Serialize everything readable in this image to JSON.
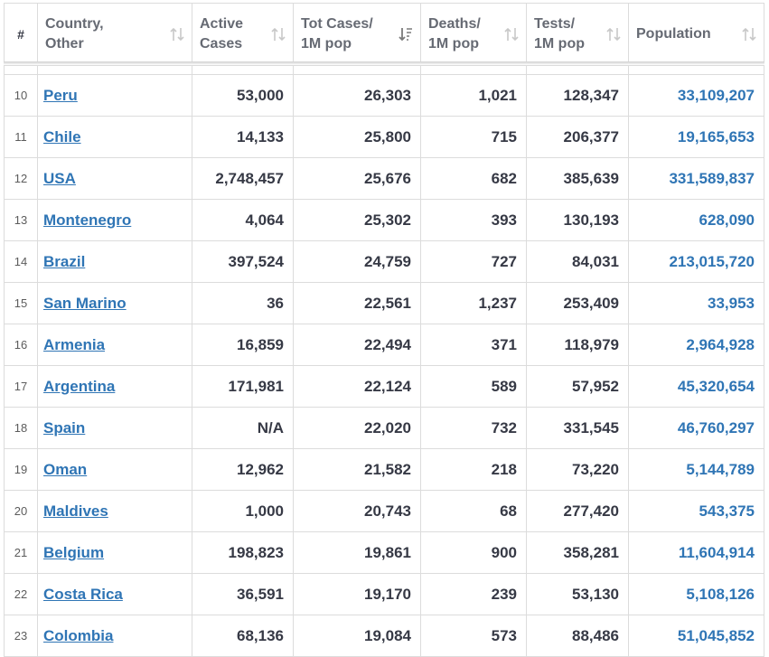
{
  "columns": [
    {
      "key": "num",
      "label": "#"
    },
    {
      "key": "country",
      "label_line1": "Country,",
      "label_line2": "Other"
    },
    {
      "key": "active",
      "label_line1": "Active",
      "label_line2": "Cases"
    },
    {
      "key": "totcases",
      "label_line1": "Tot Cases/",
      "label_line2": "1M pop",
      "sorted": "desc"
    },
    {
      "key": "deaths",
      "label_line1": "Deaths/",
      "label_line2": "1M pop"
    },
    {
      "key": "tests",
      "label_line1": "Tests/",
      "label_line2": "1M pop"
    },
    {
      "key": "population",
      "label_line1": "Population"
    }
  ],
  "icons": {
    "sort_idle": "sort-arrows-icon",
    "sort_active": "sort-descending-icon"
  },
  "colors": {
    "link": "#2f75b5",
    "population": "#2f75b5",
    "border": "#dcdcdc",
    "text": "#363945"
  },
  "rows": [
    {
      "num": "10",
      "country": "Peru",
      "active": "53,000",
      "tot": "26,303",
      "deaths": "1,021",
      "tests": "128,347",
      "pop": "33,109,207"
    },
    {
      "num": "11",
      "country": "Chile",
      "active": "14,133",
      "tot": "25,800",
      "deaths": "715",
      "tests": "206,377",
      "pop": "19,165,653"
    },
    {
      "num": "12",
      "country": "USA",
      "active": "2,748,457",
      "tot": "25,676",
      "deaths": "682",
      "tests": "385,639",
      "pop": "331,589,837"
    },
    {
      "num": "13",
      "country": "Montenegro",
      "active": "4,064",
      "tot": "25,302",
      "deaths": "393",
      "tests": "130,193",
      "pop": "628,090"
    },
    {
      "num": "14",
      "country": "Brazil",
      "active": "397,524",
      "tot": "24,759",
      "deaths": "727",
      "tests": "84,031",
      "pop": "213,015,720"
    },
    {
      "num": "15",
      "country": "San Marino",
      "active": "36",
      "tot": "22,561",
      "deaths": "1,237",
      "tests": "253,409",
      "pop": "33,953"
    },
    {
      "num": "16",
      "country": "Armenia",
      "active": "16,859",
      "tot": "22,494",
      "deaths": "371",
      "tests": "118,979",
      "pop": "2,964,928"
    },
    {
      "num": "17",
      "country": "Argentina",
      "active": "171,981",
      "tot": "22,124",
      "deaths": "589",
      "tests": "57,952",
      "pop": "45,320,654"
    },
    {
      "num": "18",
      "country": "Spain",
      "active": "N/A",
      "tot": "22,020",
      "deaths": "732",
      "tests": "331,545",
      "pop": "46,760,297"
    },
    {
      "num": "19",
      "country": "Oman",
      "active": "12,962",
      "tot": "21,582",
      "deaths": "218",
      "tests": "73,220",
      "pop": "5,144,789"
    },
    {
      "num": "20",
      "country": "Maldives",
      "active": "1,000",
      "tot": "20,743",
      "deaths": "68",
      "tests": "277,420",
      "pop": "543,375"
    },
    {
      "num": "21",
      "country": "Belgium",
      "active": "198,823",
      "tot": "19,861",
      "deaths": "900",
      "tests": "358,281",
      "pop": "11,604,914"
    },
    {
      "num": "22",
      "country": "Costa Rica",
      "active": "36,591",
      "tot": "19,170",
      "deaths": "239",
      "tests": "53,130",
      "pop": "5,108,126"
    },
    {
      "num": "23",
      "country": "Colombia",
      "active": "68,136",
      "tot": "19,084",
      "deaths": "573",
      "tests": "88,486",
      "pop": "51,045,852"
    }
  ]
}
